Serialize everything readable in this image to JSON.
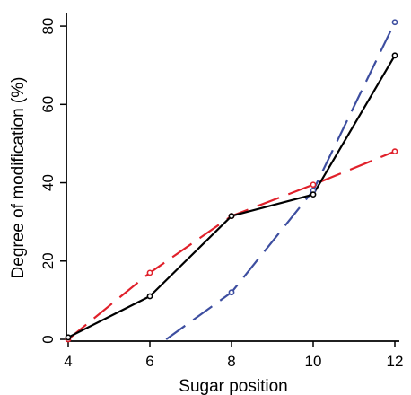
{
  "chart_data": {
    "type": "line",
    "xlabel": "Sugar position",
    "ylabel": "Degree of modification (%)",
    "xlim": [
      4,
      12
    ],
    "ylim": [
      0,
      83
    ],
    "x_ticks": [
      4,
      6,
      8,
      10,
      12
    ],
    "y_ticks": [
      0,
      20,
      40,
      60,
      80
    ],
    "x_tick_labels": [
      "4",
      "6",
      "8",
      "10",
      "12"
    ],
    "y_tick_labels": [
      "0",
      "20",
      "40",
      "60",
      "80"
    ],
    "grid": false,
    "legend": "none",
    "series": [
      {
        "color": "#000000",
        "dash": "solid",
        "points": [
          [
            4,
            0.5
          ],
          [
            6,
            11
          ],
          [
            8,
            31.5
          ],
          [
            10,
            37
          ],
          [
            12,
            72.5
          ]
        ]
      },
      {
        "color": "#e0202a",
        "dash": "dashed",
        "points": [
          [
            4,
            0
          ],
          [
            6,
            17
          ],
          [
            8,
            31.5
          ],
          [
            10,
            39.5
          ],
          [
            12,
            48
          ]
        ]
      },
      {
        "color": "#3d4ea0",
        "dash": "dashed",
        "points": [
          [
            6.4,
            0
          ],
          [
            8,
            12
          ],
          [
            10,
            38
          ],
          [
            12,
            81
          ]
        ],
        "markers": [
          [
            8,
            12
          ],
          [
            10,
            38
          ],
          [
            12,
            81
          ]
        ]
      }
    ]
  }
}
